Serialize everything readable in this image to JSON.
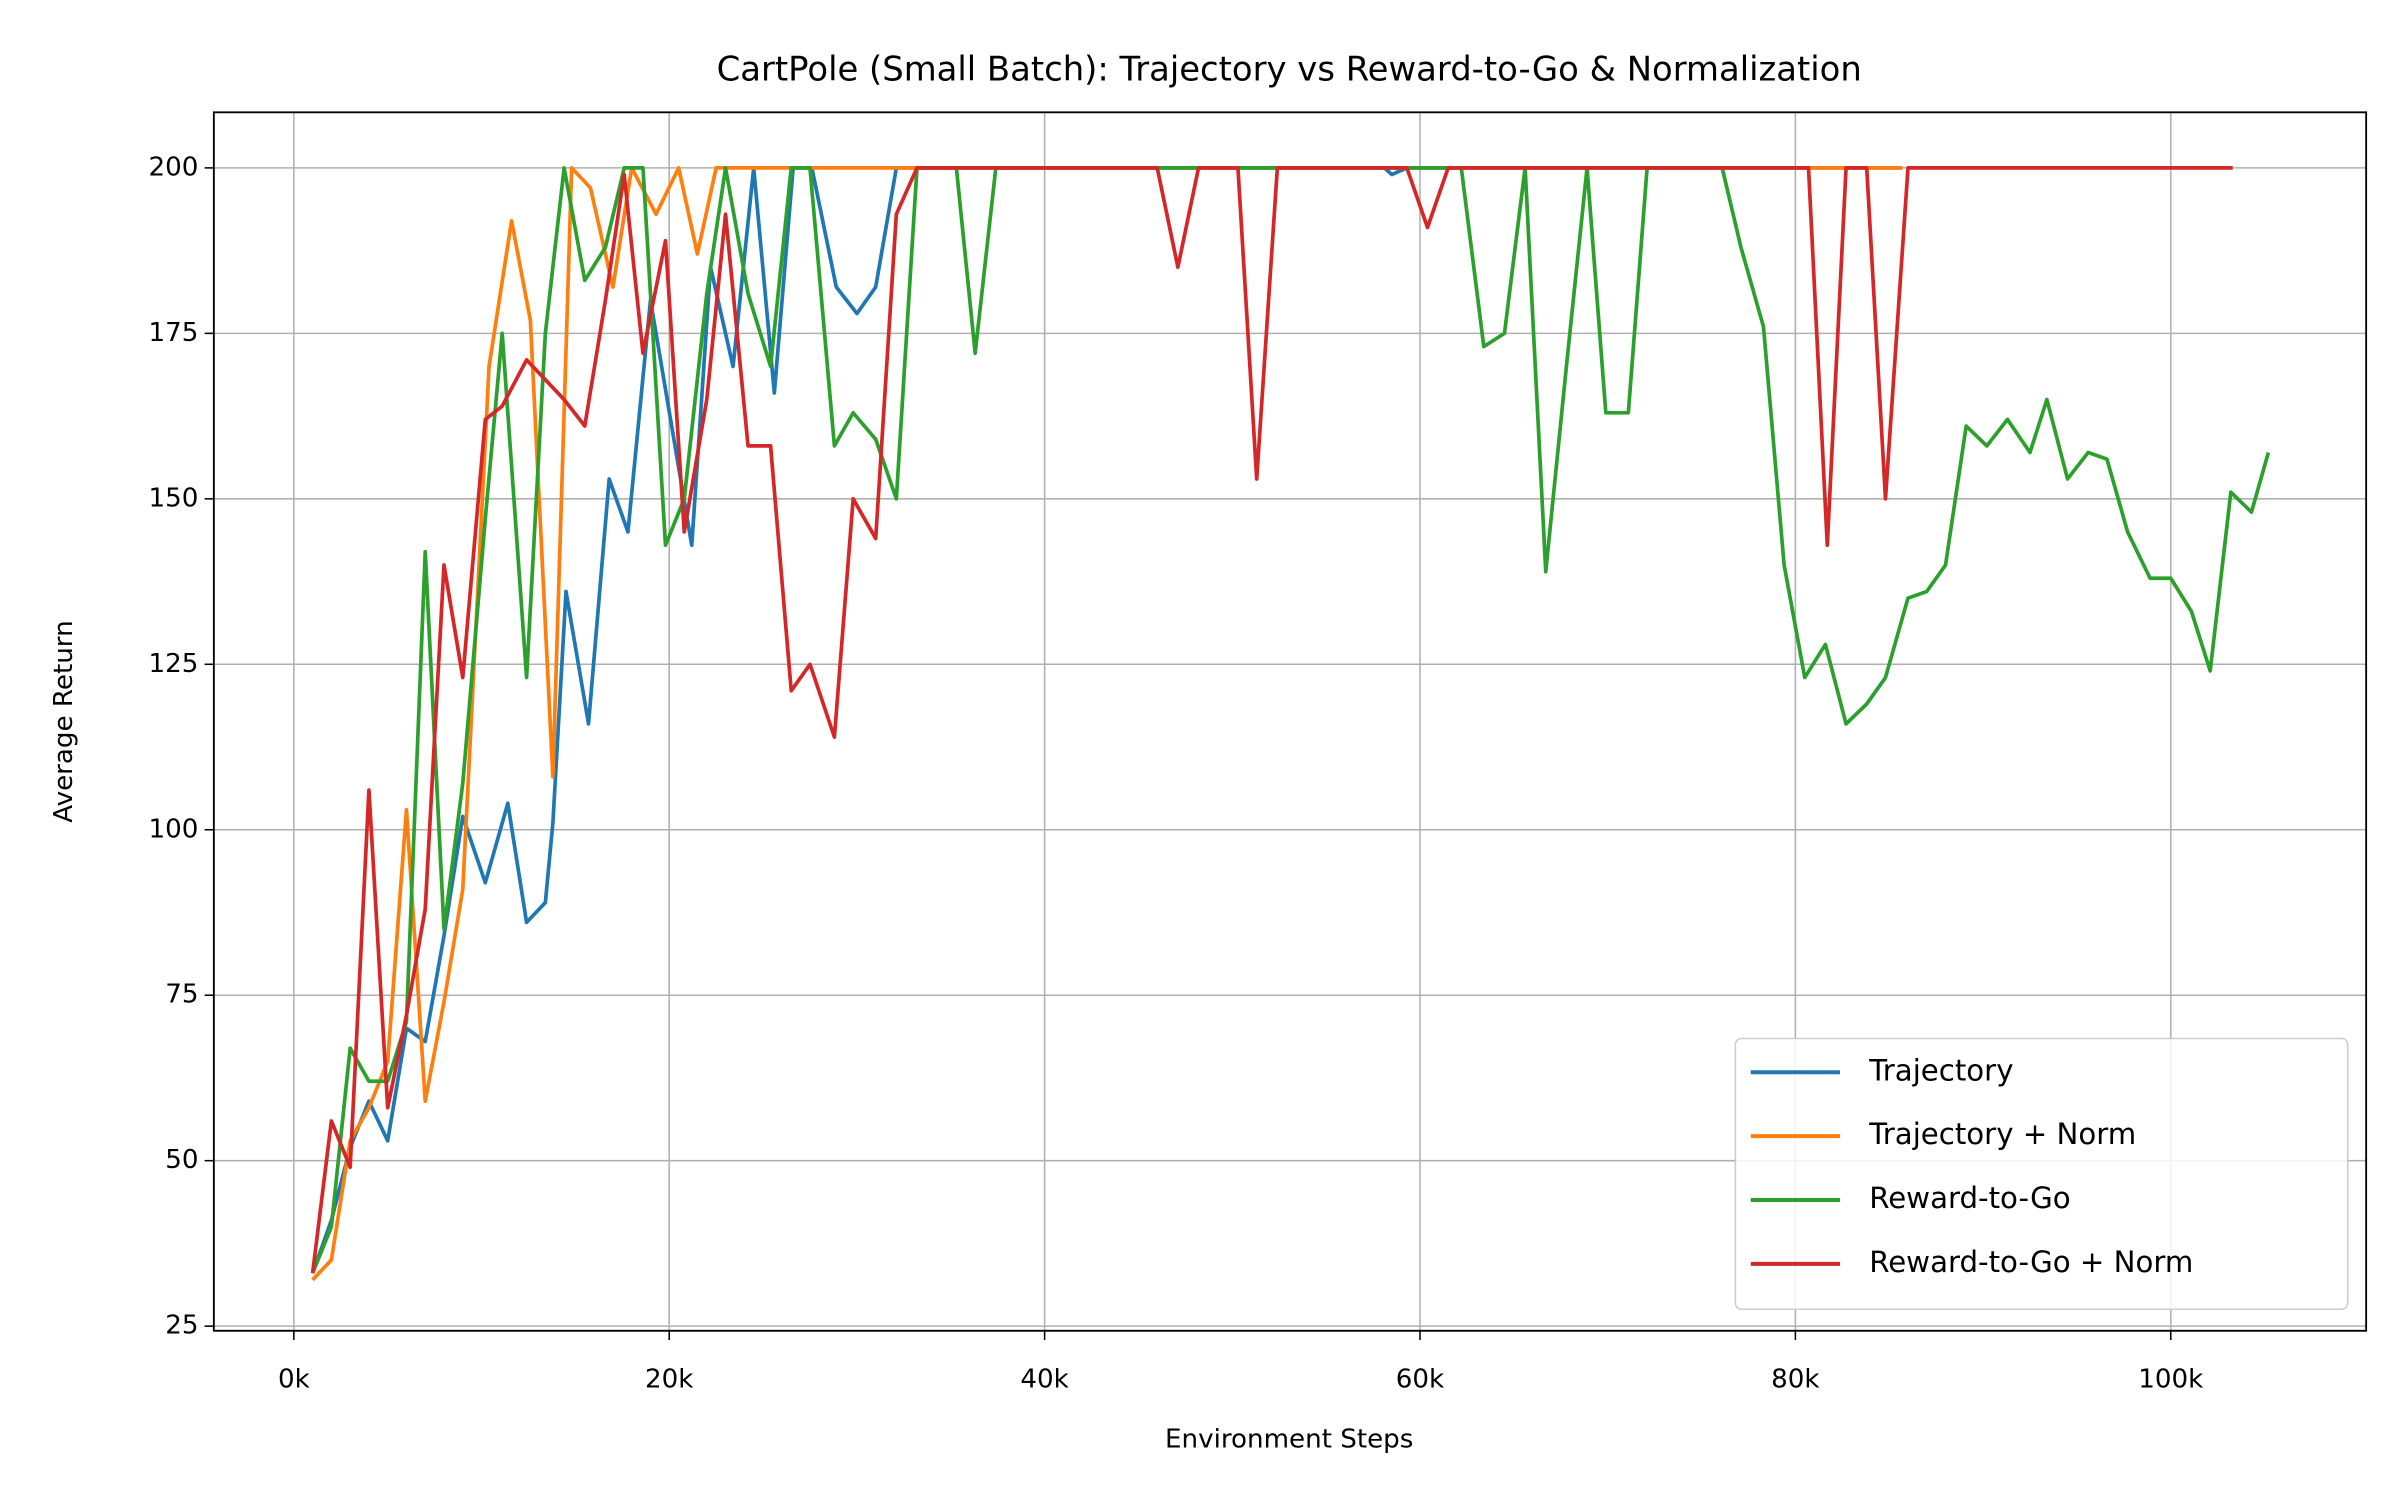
{
  "chart_data": {
    "type": "line",
    "title": "CartPole (Small Batch): Trajectory vs Reward-to-Go & Normalization",
    "x_label": "Environment Steps",
    "y_label": "Average Return",
    "xlim": [
      -4262,
      110410
    ],
    "ylim": [
      24.3,
      208.4
    ],
    "xticks": [
      {
        "value": 0,
        "label": "0k"
      },
      {
        "value": 20000,
        "label": "20k"
      },
      {
        "value": 40000,
        "label": "40k"
      },
      {
        "value": 60000,
        "label": "60k"
      },
      {
        "value": 80000,
        "label": "80k"
      },
      {
        "value": 100000,
        "label": "100k"
      }
    ],
    "yticks": [
      25,
      50,
      75,
      100,
      125,
      150,
      175,
      200
    ],
    "grid": true,
    "legend": "lower right",
    "series": [
      {
        "name": "Trajectory",
        "color": "#1f77b4",
        "x": [
          1000,
          2000,
          3000,
          4000,
          5000,
          6000,
          7000,
          8000,
          9000,
          10200,
          11400,
          12400,
          13400,
          13800,
          14500,
          15700,
          16800,
          17800,
          19000,
          21200,
          22200,
          23400,
          24500,
          25600,
          26600,
          27600,
          28900,
          30000,
          31000,
          32100,
          58100,
          58500,
          59300,
          85700
        ],
        "values": [
          33,
          41,
          52,
          59,
          53,
          70,
          68,
          84,
          102,
          92,
          104,
          86,
          89,
          101,
          136,
          116,
          153,
          145,
          180,
          143,
          185,
          170,
          200,
          166,
          200,
          200,
          182,
          178,
          182,
          200,
          200,
          199,
          200,
          200
        ]
      },
      {
        "name": "Trajectory + Norm",
        "color": "#ff7f0e",
        "x": [
          1000,
          2000,
          3000,
          4000,
          5000,
          6000,
          7000,
          8000,
          9000,
          10400,
          11600,
          12600,
          13800,
          14800,
          15800,
          17000,
          18000,
          19300,
          20500,
          21500,
          22500,
          85700
        ],
        "values": [
          32,
          35,
          53,
          58,
          65,
          103,
          59,
          74,
          91,
          170,
          192,
          177,
          108,
          200,
          197,
          182,
          200,
          193,
          200,
          187,
          200,
          200
        ]
      },
      {
        "name": "Reward-to-Go",
        "color": "#2ca02c",
        "x": [
          1000,
          2000,
          3000,
          4000,
          5000,
          6000,
          7000,
          8000,
          9000,
          10200,
          11100,
          12400,
          13400,
          14400,
          15500,
          16600,
          17600,
          18600,
          19800,
          20800,
          22000,
          23000,
          24200,
          25400,
          26500,
          27500,
          28800,
          29800,
          31000,
          32100,
          33200,
          35300,
          36300,
          37400,
          62200,
          63400,
          64500,
          65600,
          66700,
          67800,
          68900,
          69900,
          71100,
          72100,
          76100,
          77100,
          78300,
          79400,
          80500,
          81600,
          82700,
          83800,
          84800,
          86000,
          87000,
          88000,
          89100,
          90200,
          91300,
          92500,
          93400,
          94500,
          95600,
          96600,
          97700,
          98900,
          100000,
          101100,
          102100,
          103200,
          104300,
          105200
        ],
        "values": [
          33,
          40,
          67,
          62,
          62,
          71,
          142,
          85,
          107,
          147,
          175,
          123,
          175,
          200,
          183,
          188,
          200,
          200,
          143,
          150,
          181,
          200,
          181,
          170,
          200,
          200,
          158,
          163,
          159,
          150,
          200,
          200,
          172,
          200,
          200,
          173,
          175,
          200,
          139,
          170,
          200,
          163,
          163,
          200,
          200,
          188,
          176,
          140,
          123,
          128,
          116,
          119,
          123,
          135,
          136,
          140,
          161,
          158,
          162,
          157,
          165,
          153,
          157,
          156,
          145,
          138,
          138,
          133,
          124,
          151,
          148,
          157
        ]
      },
      {
        "name": "Reward-to-Go + Norm",
        "color": "#d62728",
        "x": [
          1000,
          2000,
          3000,
          4000,
          5000,
          6000,
          7000,
          8000,
          9000,
          10200,
          11100,
          12400,
          13400,
          14400,
          15500,
          16600,
          17600,
          18600,
          19800,
          20800,
          22000,
          23000,
          24200,
          25400,
          26500,
          27500,
          28800,
          29800,
          31000,
          32100,
          33200,
          46000,
          47100,
          48200,
          50300,
          51300,
          52400,
          59300,
          60400,
          61500,
          80700,
          81700,
          82700,
          83800,
          84800,
          86000,
          103300
        ],
        "values": [
          33,
          56,
          49,
          106,
          58,
          72,
          88,
          140,
          123,
          162,
          164,
          171,
          168,
          165,
          161,
          180,
          199,
          172,
          189,
          145,
          165,
          193,
          158,
          158,
          121,
          125,
          114,
          150,
          144,
          193,
          200,
          200,
          185,
          200,
          200,
          153,
          200,
          200,
          191,
          200,
          200,
          143,
          200,
          200,
          150,
          200,
          200
        ]
      }
    ]
  }
}
